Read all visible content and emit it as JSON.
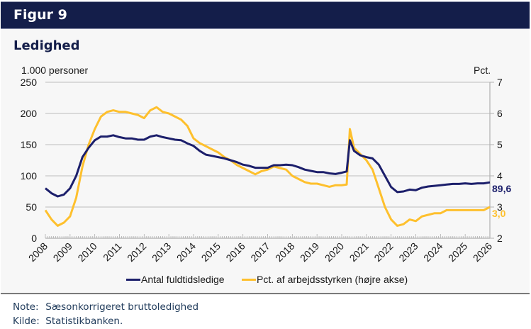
{
  "header": {
    "title": "Figur 9"
  },
  "chart_title": "Ledighed",
  "notes": [
    {
      "label": "Note:",
      "text": "Sæsonkorrigeret bruttoledighed"
    },
    {
      "label": "Kilde:",
      "text": "Statistikbanken."
    }
  ],
  "colors": {
    "header_bg": "#141e4a",
    "series_navy": "#1c1f6b",
    "series_yellow": "#fec02d",
    "grid": "#c8c8c8"
  },
  "chart_data": {
    "type": "line",
    "title": "Ledighed",
    "xlabel": "",
    "ylabel": "1.000 personer",
    "ylabel_right": "Pct.",
    "ylim": [
      0,
      250
    ],
    "ylim_right": [
      2,
      7
    ],
    "yticks": [
      "0",
      "50",
      "100",
      "150",
      "200",
      "250"
    ],
    "yticks_right": [
      "2",
      "3",
      "4",
      "5",
      "6",
      "7"
    ],
    "xlim": [
      2008,
      2026
    ],
    "xticks": [
      "2008",
      "2009",
      "2010",
      "2011",
      "2012",
      "2013",
      "2014",
      "2015",
      "2016",
      "2017",
      "2018",
      "2019",
      "2020",
      "2021",
      "2022",
      "2023",
      "2024",
      "2025",
      "2026"
    ],
    "grid": true,
    "legend_position": "bottom",
    "series": [
      {
        "name": "Antal fuldtidsledige",
        "axis": "left",
        "end_label": "89,6",
        "x": [
          2008.0,
          2008.25,
          2008.5,
          2008.75,
          2009.0,
          2009.25,
          2009.5,
          2009.75,
          2010.0,
          2010.25,
          2010.5,
          2010.75,
          2011.0,
          2011.25,
          2011.5,
          2011.75,
          2012.0,
          2012.25,
          2012.5,
          2012.75,
          2013.0,
          2013.25,
          2013.5,
          2013.75,
          2014.0,
          2014.25,
          2014.5,
          2014.75,
          2015.0,
          2015.25,
          2015.5,
          2015.75,
          2016.0,
          2016.25,
          2016.5,
          2016.75,
          2017.0,
          2017.25,
          2017.5,
          2017.75,
          2018.0,
          2018.25,
          2018.5,
          2018.75,
          2019.0,
          2019.25,
          2019.5,
          2019.75,
          2020.0,
          2020.2,
          2020.33,
          2020.5,
          2020.75,
          2021.0,
          2021.25,
          2021.5,
          2021.75,
          2022.0,
          2022.25,
          2022.5,
          2022.75,
          2023.0,
          2023.25,
          2023.5,
          2023.75,
          2024.0,
          2024.25,
          2024.5,
          2024.75,
          2025.0,
          2025.25,
          2025.5,
          2025.75,
          2026.0
        ],
        "values": [
          80,
          72,
          67,
          70,
          80,
          100,
          130,
          145,
          157,
          163,
          163,
          165,
          162,
          160,
          160,
          158,
          158,
          163,
          165,
          162,
          160,
          158,
          157,
          152,
          148,
          140,
          134,
          132,
          130,
          128,
          125,
          122,
          118,
          116,
          113,
          113,
          113,
          117,
          117,
          118,
          117,
          114,
          110,
          108,
          106,
          106,
          104,
          103,
          105,
          107,
          157,
          140,
          133,
          130,
          128,
          118,
          100,
          82,
          74,
          75,
          78,
          77,
          81,
          83,
          84,
          85,
          86,
          87,
          87,
          88,
          87,
          88,
          88,
          89.6
        ]
      },
      {
        "name": "Pct. af arbejdsstyrken (højre akse)",
        "axis": "right",
        "end_label": "3,0",
        "x": [
          2008.0,
          2008.25,
          2008.5,
          2008.75,
          2009.0,
          2009.25,
          2009.5,
          2009.75,
          2010.0,
          2010.25,
          2010.5,
          2010.75,
          2011.0,
          2011.25,
          2011.5,
          2011.75,
          2012.0,
          2012.25,
          2012.5,
          2012.75,
          2013.0,
          2013.25,
          2013.5,
          2013.75,
          2014.0,
          2014.25,
          2014.5,
          2014.75,
          2015.0,
          2015.25,
          2015.5,
          2015.75,
          2016.0,
          2016.25,
          2016.5,
          2016.75,
          2017.0,
          2017.25,
          2017.5,
          2017.75,
          2018.0,
          2018.25,
          2018.5,
          2018.75,
          2019.0,
          2019.25,
          2019.5,
          2019.75,
          2020.0,
          2020.2,
          2020.33,
          2020.5,
          2020.75,
          2021.0,
          2021.25,
          2021.5,
          2021.75,
          2022.0,
          2022.25,
          2022.5,
          2022.75,
          2023.0,
          2023.25,
          2023.5,
          2023.75,
          2024.0,
          2024.25,
          2024.5,
          2024.75,
          2025.0,
          2025.25,
          2025.5,
          2025.75,
          2026.0
        ],
        "values": [
          2.9,
          2.6,
          2.4,
          2.5,
          2.7,
          3.3,
          4.3,
          5.0,
          5.5,
          5.9,
          6.05,
          6.1,
          6.05,
          6.05,
          6.0,
          5.95,
          5.85,
          6.1,
          6.2,
          6.05,
          6.0,
          5.9,
          5.8,
          5.6,
          5.2,
          5.05,
          4.95,
          4.85,
          4.75,
          4.6,
          4.5,
          4.35,
          4.25,
          4.15,
          4.05,
          4.15,
          4.2,
          4.3,
          4.25,
          4.2,
          4.0,
          3.9,
          3.8,
          3.75,
          3.75,
          3.7,
          3.65,
          3.7,
          3.7,
          3.72,
          5.5,
          4.9,
          4.7,
          4.5,
          4.2,
          3.6,
          3.0,
          2.6,
          2.4,
          2.45,
          2.6,
          2.55,
          2.7,
          2.75,
          2.8,
          2.8,
          2.9,
          2.9,
          2.9,
          2.9,
          2.9,
          2.9,
          2.9,
          3.0
        ]
      }
    ]
  }
}
